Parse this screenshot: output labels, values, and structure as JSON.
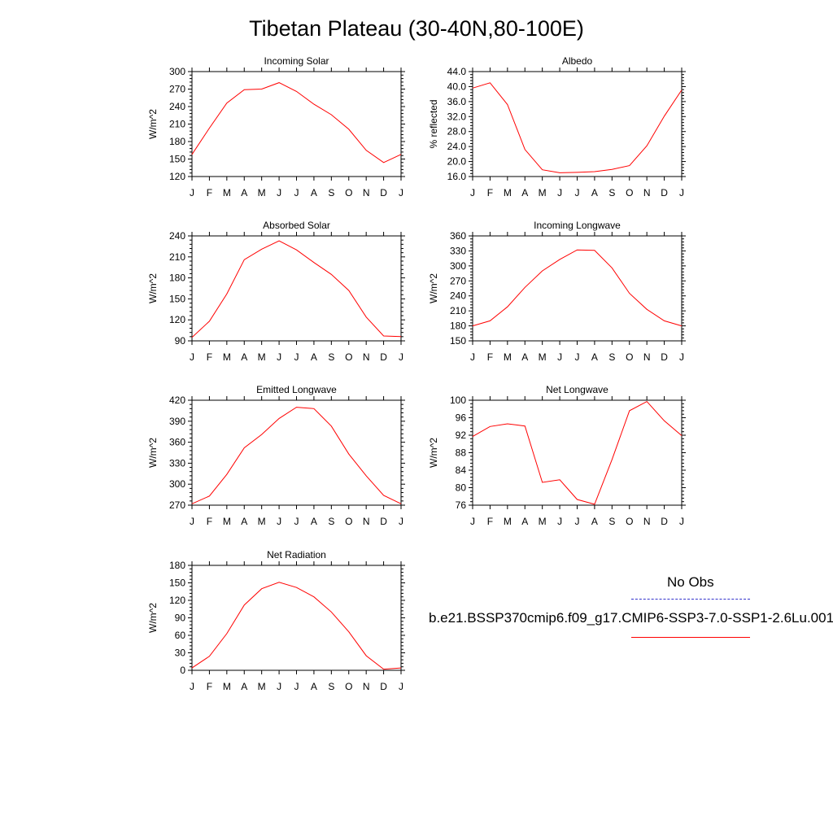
{
  "title": "Tibetan Plateau (30-40N,80-100E)",
  "months": [
    "J",
    "F",
    "M",
    "A",
    "M",
    "J",
    "J",
    "A",
    "S",
    "O",
    "N",
    "D",
    "J"
  ],
  "legend": {
    "obs_label": "No Obs",
    "model_label": "b.e21.BSSP370cmip6.f09_g17.CMIP6-SSP3-7.0-SSP1-2.6Lu.001",
    "obs_color": "#3333cc",
    "model_color": "#ff0000"
  },
  "chart_data": [
    {
      "type": "line",
      "title": "Incoming Solar",
      "ylabel": "W/m^2",
      "ylim": [
        120,
        300
      ],
      "yticks": [
        "120",
        "150",
        "180",
        "210",
        "240",
        "270",
        "300"
      ],
      "categories": [
        "J",
        "F",
        "M",
        "A",
        "M",
        "J",
        "J",
        "A",
        "S",
        "O",
        "N",
        "D",
        "J"
      ],
      "series": [
        {
          "values": [
            158,
            203,
            246,
            269,
            270,
            281,
            266,
            244,
            226,
            201,
            165,
            144,
            158
          ]
        }
      ]
    },
    {
      "type": "line",
      "title": "Albedo",
      "ylabel": "% reflected",
      "ylim": [
        16,
        44
      ],
      "yticks": [
        "16.0",
        "20.0",
        "24.0",
        "28.0",
        "32.0",
        "36.0",
        "40.0",
        "44.0"
      ],
      "categories": [
        "J",
        "F",
        "M",
        "A",
        "M",
        "J",
        "J",
        "A",
        "S",
        "O",
        "N",
        "D",
        "J"
      ],
      "series": [
        {
          "values": [
            39.6,
            41.0,
            35.2,
            23.2,
            17.8,
            17.0,
            17.1,
            17.3,
            17.9,
            18.9,
            24.2,
            32.1,
            39.1
          ]
        }
      ]
    },
    {
      "type": "line",
      "title": "Absorbed Solar",
      "ylabel": "W/m^2",
      "ylim": [
        90,
        240
      ],
      "yticks": [
        "90",
        "120",
        "150",
        "180",
        "210",
        "240"
      ],
      "categories": [
        "J",
        "F",
        "M",
        "A",
        "M",
        "J",
        "J",
        "A",
        "S",
        "O",
        "N",
        "D",
        "J"
      ],
      "series": [
        {
          "values": [
            95,
            118,
            157,
            206,
            221,
            233,
            220,
            202,
            185,
            162,
            124,
            97,
            96
          ]
        }
      ]
    },
    {
      "type": "line",
      "title": "Incoming Longwave",
      "ylabel": "W/m^2",
      "ylim": [
        150,
        360
      ],
      "yticks": [
        "150",
        "180",
        "210",
        "240",
        "270",
        "300",
        "330",
        "360"
      ],
      "categories": [
        "J",
        "F",
        "M",
        "A",
        "M",
        "J",
        "J",
        "A",
        "S",
        "O",
        "N",
        "D",
        "J"
      ],
      "series": [
        {
          "values": [
            180,
            190,
            218,
            257,
            290,
            313,
            332,
            331,
            296,
            245,
            213,
            190,
            180
          ]
        }
      ]
    },
    {
      "type": "line",
      "title": "Emitted Longwave",
      "ylabel": "W/m^2",
      "ylim": [
        270,
        420
      ],
      "yticks": [
        "270",
        "300",
        "330",
        "360",
        "390",
        "420"
      ],
      "categories": [
        "J",
        "F",
        "M",
        "A",
        "M",
        "J",
        "J",
        "A",
        "S",
        "O",
        "N",
        "D",
        "J"
      ],
      "series": [
        {
          "values": [
            272,
            283,
            314,
            352,
            371,
            394,
            410,
            408,
            383,
            343,
            312,
            284,
            272
          ]
        }
      ]
    },
    {
      "type": "line",
      "title": "Net Longwave",
      "ylabel": "W/m^2",
      "ylim": [
        76,
        100
      ],
      "yticks": [
        "76",
        "80",
        "84",
        "88",
        "92",
        "96",
        "100"
      ],
      "categories": [
        "J",
        "F",
        "M",
        "A",
        "M",
        "J",
        "J",
        "A",
        "S",
        "O",
        "N",
        "D",
        "J"
      ],
      "series": [
        {
          "values": [
            91.7,
            94.0,
            94.6,
            94.1,
            81.2,
            81.8,
            77.3,
            76.2,
            86.4,
            97.6,
            99.7,
            95.3,
            91.9
          ]
        }
      ]
    },
    {
      "type": "line",
      "title": "Net Radiation",
      "ylabel": "W/m^2",
      "ylim": [
        0,
        180
      ],
      "yticks": [
        "0",
        "30",
        "60",
        "90",
        "120",
        "150",
        "180"
      ],
      "categories": [
        "J",
        "F",
        "M",
        "A",
        "M",
        "J",
        "J",
        "A",
        "S",
        "O",
        "N",
        "D",
        "J"
      ],
      "series": [
        {
          "values": [
            4,
            24,
            63,
            112,
            140,
            151,
            142,
            126,
            100,
            66,
            25,
            2,
            4
          ]
        }
      ]
    }
  ]
}
